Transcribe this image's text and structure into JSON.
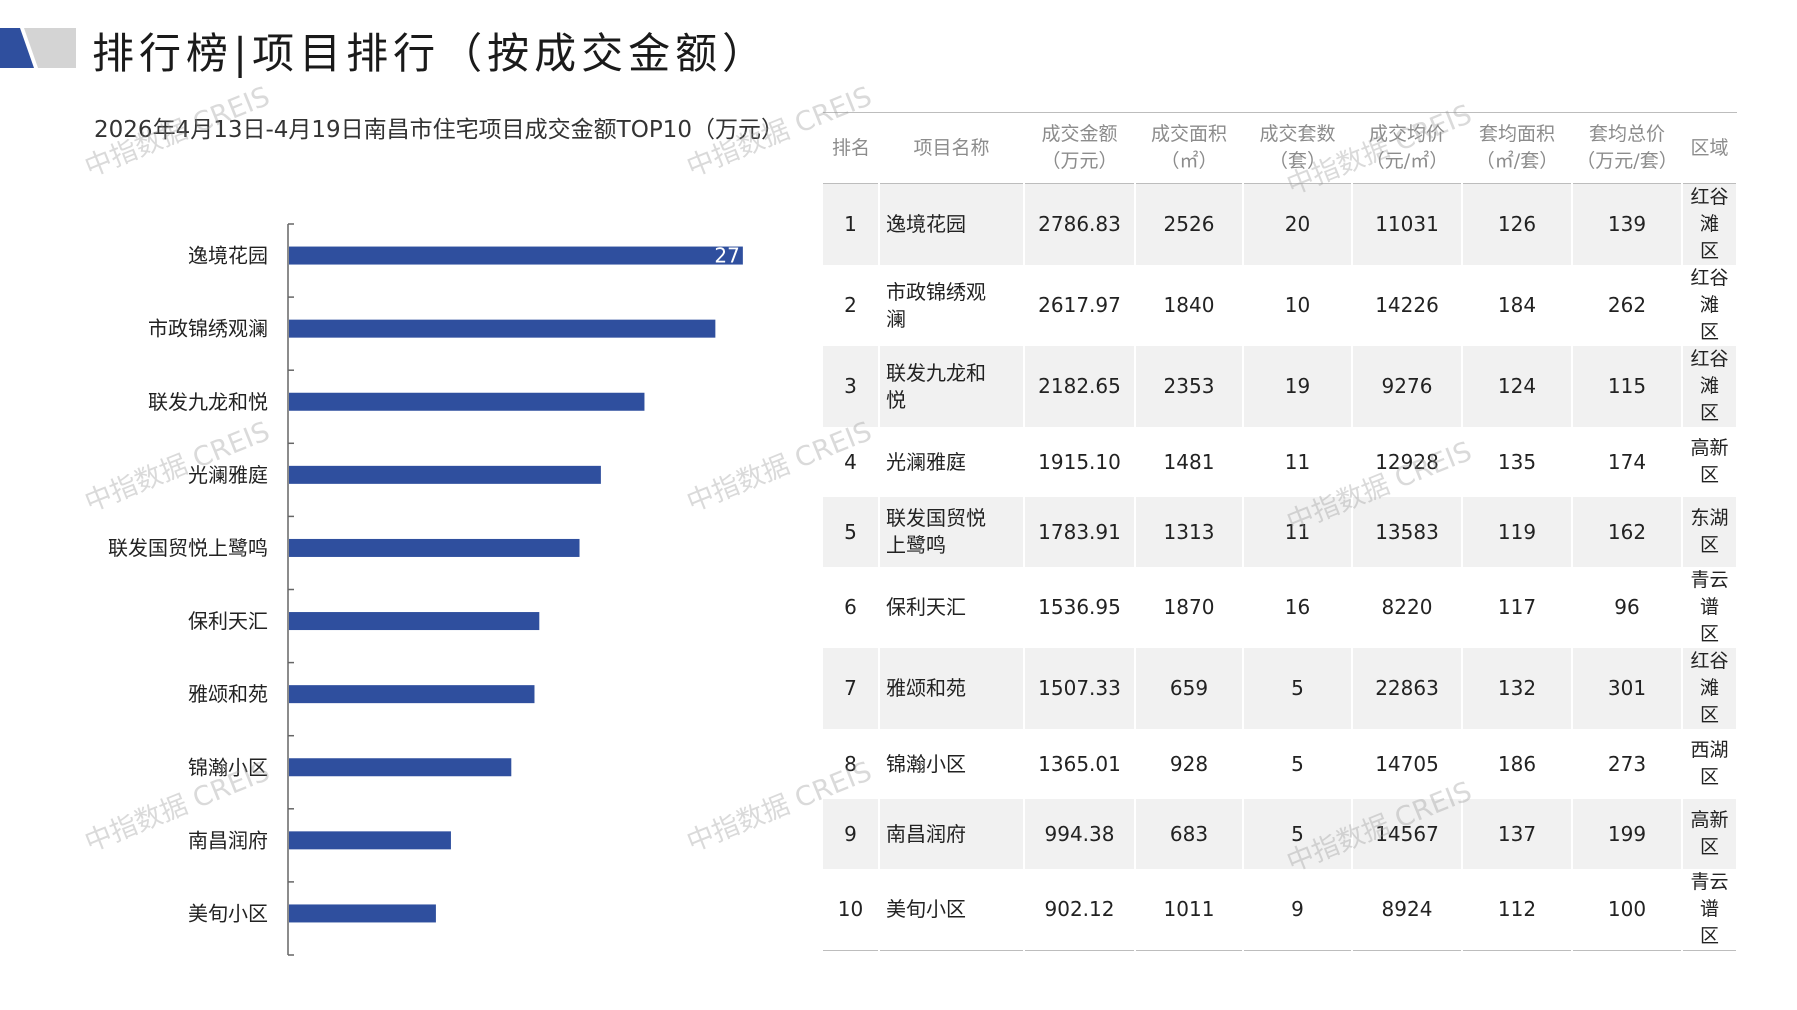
{
  "header": {
    "title": "排行榜|项目排行（按成交金额）"
  },
  "colors": {
    "bar": "#2f4f9e",
    "logo_dark": "#2f4f9e",
    "logo_light": "#d4d4d4",
    "row_band": "#f1f1f1"
  },
  "chart_data": {
    "type": "bar",
    "orientation": "horizontal",
    "title": "2026年4月13日-4月19日南昌市住宅项目成交金额TOP10（万元）",
    "categories": [
      "逸境花园",
      "市政锦绣观澜",
      "联发九龙和悦",
      "光澜雅庭",
      "联发国贸悦上鹭鸣",
      "保利天汇",
      "雅颂和苑",
      "锦瀚小区",
      "南昌润府",
      "美旬小区"
    ],
    "values": [
      2786.83,
      2617.97,
      2182.65,
      1915.1,
      1783.91,
      1536.95,
      1507.33,
      1365.01,
      994.38,
      902.12
    ],
    "visible_value_labels": [
      "27",
      "",
      "",
      "",
      "",
      "",
      "",
      "",
      "",
      ""
    ],
    "xlim": [
      0,
      2800
    ],
    "bar_color": "#2f4f9e",
    "grid": false,
    "legend": "none"
  },
  "table": {
    "headers": [
      [
        "排名"
      ],
      [
        "项目名称"
      ],
      [
        "成交金额",
        "（万元）"
      ],
      [
        "成交面积",
        "（㎡）"
      ],
      [
        "成交套数",
        "（套）"
      ],
      [
        "成交均价",
        "（元/㎡）"
      ],
      [
        "套均面积",
        "（㎡/套）"
      ],
      [
        "套均总价",
        "（万元/套）"
      ],
      [
        "区域"
      ]
    ],
    "rows": [
      {
        "rank": "1",
        "name": [
          "逸境花园"
        ],
        "amount": "2786.83",
        "area": "2526",
        "units": "20",
        "avg_price": "11031",
        "avg_area": "126",
        "avg_total": "139",
        "district": [
          "红谷滩",
          "区"
        ]
      },
      {
        "rank": "2",
        "name": [
          "市政锦绣观",
          "澜"
        ],
        "amount": "2617.97",
        "area": "1840",
        "units": "10",
        "avg_price": "14226",
        "avg_area": "184",
        "avg_total": "262",
        "district": [
          "红谷滩",
          "区"
        ]
      },
      {
        "rank": "3",
        "name": [
          "联发九龙和",
          "悦"
        ],
        "amount": "2182.65",
        "area": "2353",
        "units": "19",
        "avg_price": "9276",
        "avg_area": "124",
        "avg_total": "115",
        "district": [
          "红谷滩",
          "区"
        ]
      },
      {
        "rank": "4",
        "name": [
          "光澜雅庭"
        ],
        "amount": "1915.10",
        "area": "1481",
        "units": "11",
        "avg_price": "12928",
        "avg_area": "135",
        "avg_total": "174",
        "district": [
          "高新区"
        ]
      },
      {
        "rank": "5",
        "name": [
          "联发国贸悦",
          "上鹭鸣"
        ],
        "amount": "1783.91",
        "area": "1313",
        "units": "11",
        "avg_price": "13583",
        "avg_area": "119",
        "avg_total": "162",
        "district": [
          "东湖区"
        ]
      },
      {
        "rank": "6",
        "name": [
          "保利天汇"
        ],
        "amount": "1536.95",
        "area": "1870",
        "units": "16",
        "avg_price": "8220",
        "avg_area": "117",
        "avg_total": "96",
        "district": [
          "青云谱",
          "区"
        ]
      },
      {
        "rank": "7",
        "name": [
          "雅颂和苑"
        ],
        "amount": "1507.33",
        "area": "659",
        "units": "5",
        "avg_price": "22863",
        "avg_area": "132",
        "avg_total": "301",
        "district": [
          "红谷滩",
          "区"
        ]
      },
      {
        "rank": "8",
        "name": [
          "锦瀚小区"
        ],
        "amount": "1365.01",
        "area": "928",
        "units": "5",
        "avg_price": "14705",
        "avg_area": "186",
        "avg_total": "273",
        "district": [
          "西湖区"
        ]
      },
      {
        "rank": "9",
        "name": [
          "南昌润府"
        ],
        "amount": "994.38",
        "area": "683",
        "units": "5",
        "avg_price": "14567",
        "avg_area": "137",
        "avg_total": "199",
        "district": [
          "高新区"
        ]
      },
      {
        "rank": "10",
        "name": [
          "美旬小区"
        ],
        "amount": "902.12",
        "area": "1011",
        "units": "9",
        "avg_price": "8924",
        "avg_area": "112",
        "avg_total": "100",
        "district": [
          "青云谱",
          "区"
        ]
      }
    ]
  },
  "watermark": {
    "text": "中指数据 CREIS"
  }
}
